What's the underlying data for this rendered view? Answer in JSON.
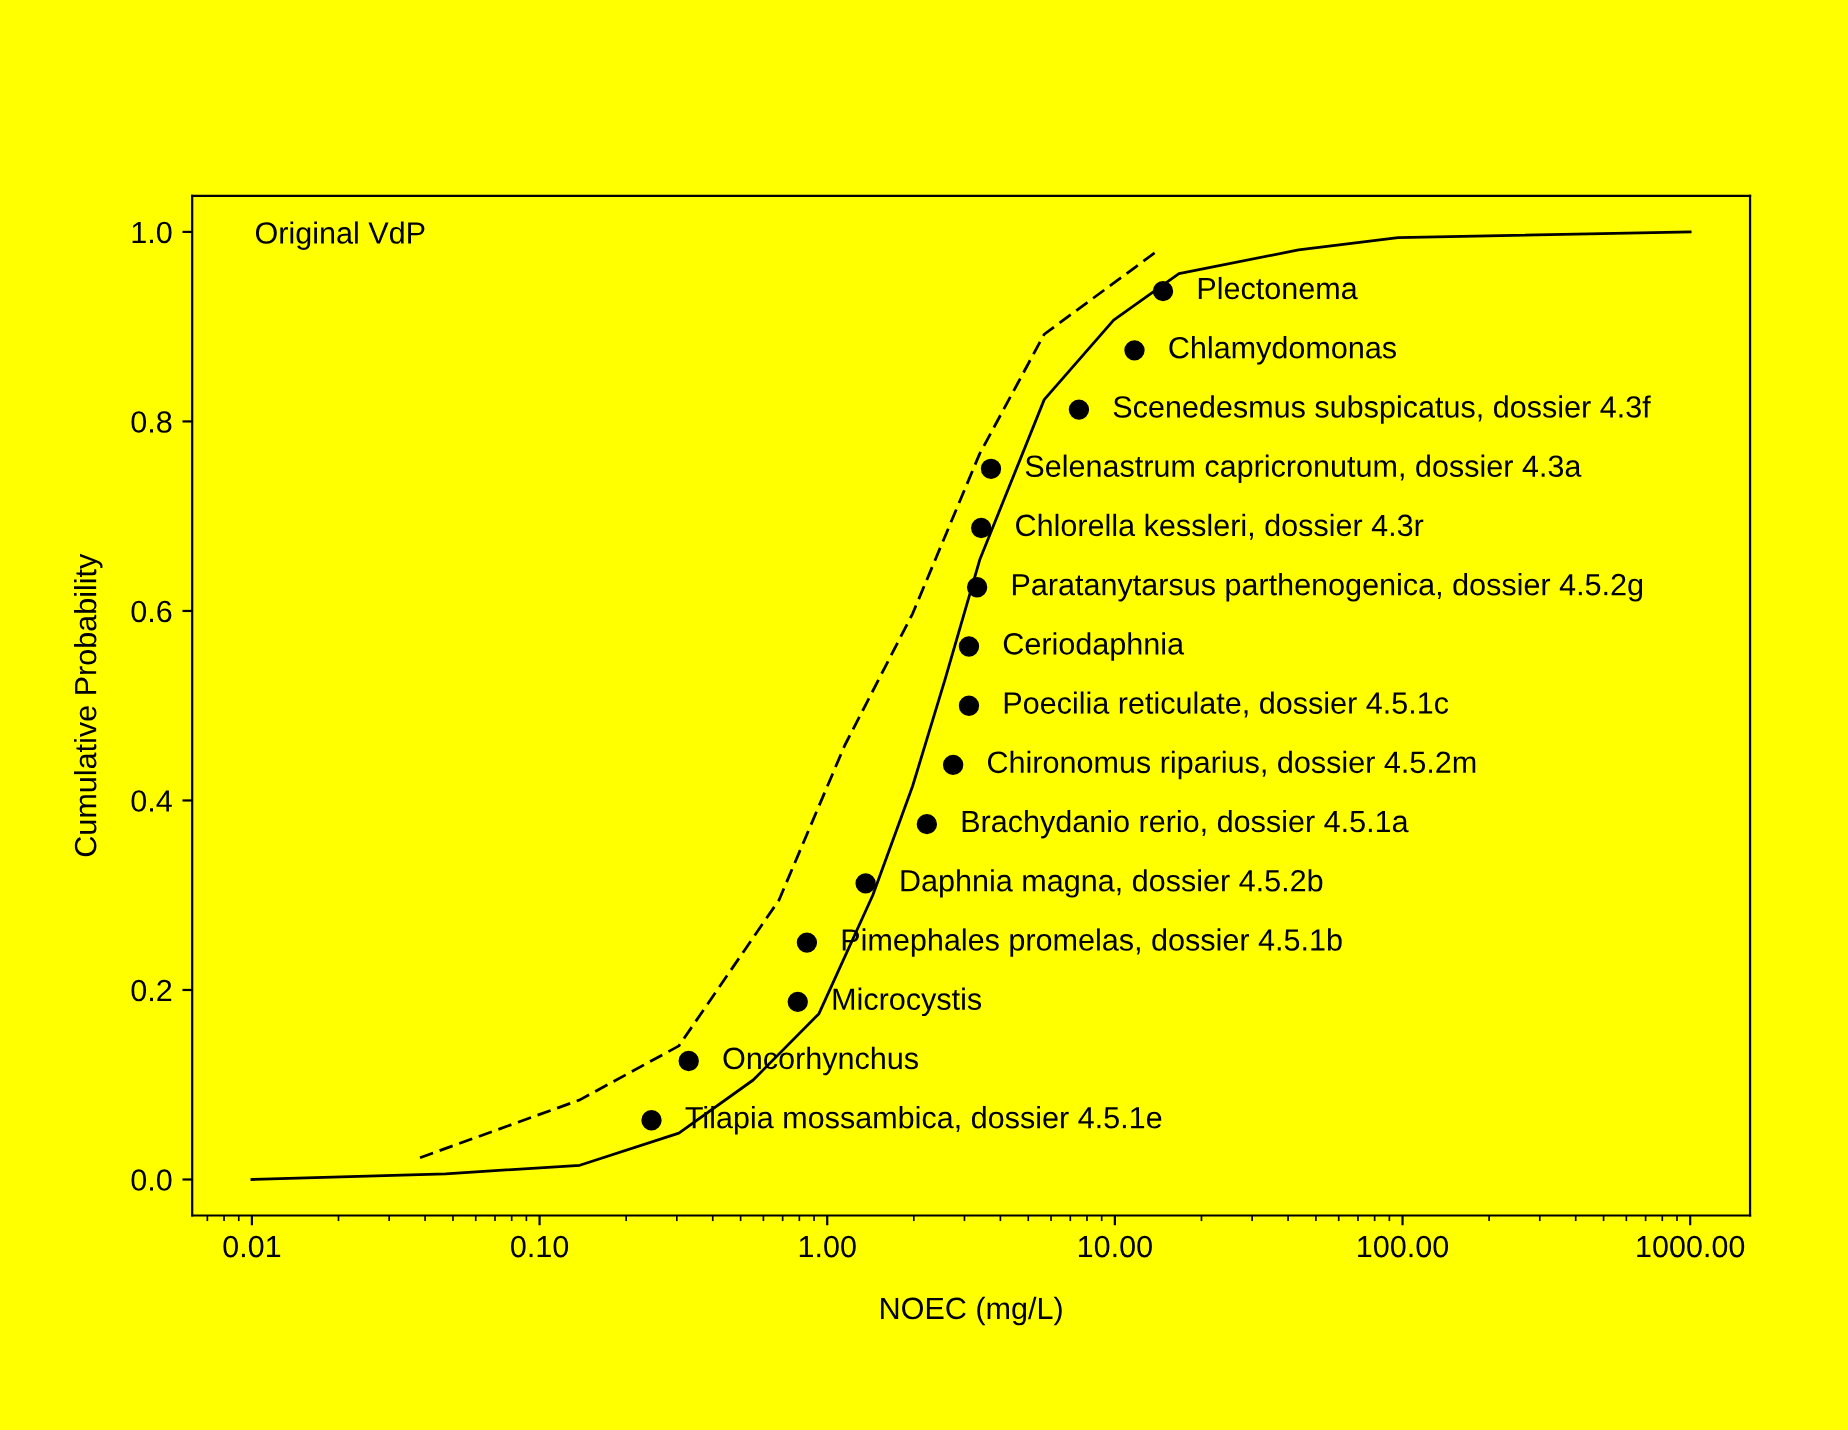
{
  "chart_data": {
    "type": "scatter",
    "xlabel": "NOEC (mg/L)",
    "ylabel": "Cumulative Probability",
    "log": "x",
    "xlim": [
      0.0062,
      1615
    ],
    "ylim": [
      -0.038,
      1.038
    ],
    "xticks": [
      {
        "value": 0.01,
        "label": "0.01"
      },
      {
        "value": 0.1,
        "label": "0.10"
      },
      {
        "value": 1,
        "label": "1.00"
      },
      {
        "value": 10,
        "label": "10.00"
      },
      {
        "value": 100,
        "label": "100.00"
      },
      {
        "value": 1000,
        "label": "1000.00"
      }
    ],
    "yticks": [
      {
        "value": 0,
        "label": "0.0"
      },
      {
        "value": 0.2,
        "label": "0.2"
      },
      {
        "value": 0.4,
        "label": "0.4"
      },
      {
        "value": 0.6,
        "label": "0.6"
      },
      {
        "value": 0.8,
        "label": "0.8"
      },
      {
        "value": 1,
        "label": "1.0"
      }
    ],
    "grid": false,
    "series": [
      {
        "color": "#000000",
        "marker": "circle",
        "x": [
          0.245,
          0.33,
          0.79,
          0.85,
          1.36,
          2.22,
          2.74,
          3.11,
          3.11,
          3.32,
          3.43,
          3.71,
          7.5,
          11.7,
          14.7
        ],
        "values": [
          0.0625,
          0.125,
          0.1875,
          0.25,
          0.3125,
          0.375,
          0.4375,
          0.5,
          0.5625,
          0.625,
          0.6875,
          0.75,
          0.8125,
          0.875,
          0.9375
        ]
      },
      {
        "type": "line",
        "color": "#000000",
        "line_style": "solid",
        "marker": "none",
        "x": [
          0.01,
          0.0471,
          0.138,
          0.305,
          0.553,
          0.936,
          1.44,
          1.98,
          2.57,
          3.39,
          5.68,
          9.9,
          16.7,
          43.5,
          96.5,
          1000
        ],
        "values": [
          0.0,
          0.006,
          0.015,
          0.049,
          0.105,
          0.175,
          0.3,
          0.415,
          0.528,
          0.654,
          0.823,
          0.907,
          0.956,
          0.981,
          0.994,
          1.0
        ]
      },
      {
        "type": "line",
        "color": "#000000",
        "line_style": "dashed",
        "marker": "none",
        "x": [
          0.0384,
          0.138,
          0.305,
          0.68,
          1.15,
          1.98,
          3.39,
          5.68,
          14.2
        ],
        "values": [
          0.023,
          0.084,
          0.141,
          0.295,
          0.458,
          0.597,
          0.766,
          0.892,
          0.981
        ]
      }
    ],
    "annotations": [
      "Original VdP",
      {
        "text": "Tilapia mossambica, dossier 4.5.1e",
        "x": 0.245,
        "y": 0.0625
      },
      {
        "text": "Oncorhynchus",
        "x": 0.33,
        "y": 0.125
      },
      {
        "text": "Microcystis",
        "x": 0.79,
        "y": 0.1875
      },
      {
        "text": "Pimephales promelas, dossier 4.5.1b",
        "x": 0.85,
        "y": 0.25
      },
      {
        "text": "Daphnia magna, dossier 4.5.2b",
        "x": 1.36,
        "y": 0.3125
      },
      {
        "text": "Brachydanio rerio, dossier 4.5.1a",
        "x": 2.22,
        "y": 0.375
      },
      {
        "text": "Chironomus riparius, dossier 4.5.2m",
        "x": 2.74,
        "y": 0.4375
      },
      {
        "text": "Poecilia reticulate, dossier 4.5.1c",
        "x": 3.11,
        "y": 0.5
      },
      {
        "text": "Ceriodaphnia",
        "x": 3.11,
        "y": 0.5625
      },
      {
        "text": "Paratanytarsus parthenogenica, dossier 4.5.2g",
        "x": 3.32,
        "y": 0.625
      },
      {
        "text": "Chlorella kessleri, dossier 4.3r",
        "x": 3.43,
        "y": 0.6875
      },
      {
        "text": "Selenastrum capricronutum, dossier 4.3a",
        "x": 3.71,
        "y": 0.75
      },
      {
        "text": "Scenedesmus subspicatus, dossier 4.3f",
        "x": 7.5,
        "y": 0.8125
      },
      {
        "text": "Chlamydomonas",
        "x": 11.7,
        "y": 0.875
      },
      {
        "text": "Plectonema",
        "x": 14.7,
        "y": 0.9375
      }
    ]
  }
}
